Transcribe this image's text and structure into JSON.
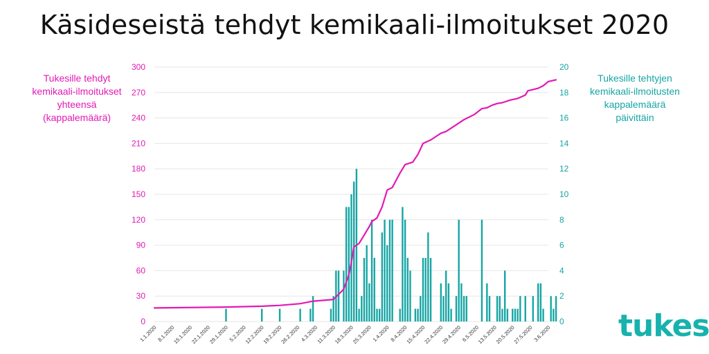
{
  "title": "Käsideseistä tehdyt kemikaali-ilmoitukset 2020",
  "left_axis_label": "Tukesille tehdyt kemikaali-ilmoitukset yhteensä (kappalemäärä)",
  "right_axis_label": "Tukesille tehtyjen kemikaali-ilmoitusten kappalemäärä päivittäin",
  "logo_text": "tukes",
  "colors": {
    "line": "#e219b4",
    "bars": "#16a5a4",
    "grid": "#e6e6e6",
    "title": "#111111"
  },
  "chart_data": {
    "type": "bar+line",
    "title": "Käsideseistä tehdyt kemikaali-ilmoitukset 2020",
    "x_start": "2020-01-01",
    "x_end": "2020-06-03",
    "x_tick_labels": [
      "1.1.2020",
      "8.1.2020",
      "15.1.2020",
      "22.1.2020",
      "29.1.2020",
      "5.2.2020",
      "12.2.2020",
      "19.2.2020",
      "26.2.2020",
      "4.3.2020",
      "11.3.2020",
      "18.3.2020",
      "25.3.2020",
      "1.4.2020",
      "8.4.2020",
      "15.4.2020",
      "22.4.2020",
      "29.4.2020",
      "6.5.2020",
      "13.5.2020",
      "20.5.2020",
      "27.5.2020",
      "3.6.2020"
    ],
    "y_left": {
      "label": "Tukesille tehdyt kemikaali-ilmoitukset yhteensä (kappalemäärä)",
      "ticks": [
        0,
        30,
        60,
        90,
        120,
        150,
        180,
        210,
        240,
        270,
        300
      ],
      "range": [
        0,
        300
      ]
    },
    "y_right": {
      "label": "Tukesille tehtyjen kemikaali-ilmoitusten kappalemäärä päivittäin",
      "ticks": [
        0,
        2,
        4,
        6,
        8,
        10,
        12,
        14,
        16,
        18,
        20
      ],
      "range": [
        0,
        20
      ]
    },
    "grid": true,
    "series": [
      {
        "kind": "bar",
        "axis": "right",
        "points": [
          [
            "2020-01-29",
            1
          ],
          [
            "2020-02-12",
            1
          ],
          [
            "2020-02-19",
            1
          ],
          [
            "2020-02-27",
            1
          ],
          [
            "2020-03-02",
            1
          ],
          [
            "2020-03-03",
            2
          ],
          [
            "2020-03-10",
            1
          ],
          [
            "2020-03-11",
            2
          ],
          [
            "2020-03-12",
            4
          ],
          [
            "2020-03-13",
            4
          ],
          [
            "2020-03-15",
            4
          ],
          [
            "2020-03-16",
            9
          ],
          [
            "2020-03-17",
            9
          ],
          [
            "2020-03-18",
            10
          ],
          [
            "2020-03-19",
            11
          ],
          [
            "2020-03-20",
            12
          ],
          [
            "2020-03-21",
            1
          ],
          [
            "2020-03-22",
            2
          ],
          [
            "2020-03-23",
            5
          ],
          [
            "2020-03-24",
            6
          ],
          [
            "2020-03-25",
            3
          ],
          [
            "2020-03-26",
            8
          ],
          [
            "2020-03-27",
            5
          ],
          [
            "2020-03-28",
            1
          ],
          [
            "2020-03-29",
            1
          ],
          [
            "2020-03-30",
            7
          ],
          [
            "2020-03-31",
            8
          ],
          [
            "2020-04-01",
            6
          ],
          [
            "2020-04-02",
            8
          ],
          [
            "2020-04-03",
            8
          ],
          [
            "2020-04-06",
            1
          ],
          [
            "2020-04-07",
            9
          ],
          [
            "2020-04-08",
            8
          ],
          [
            "2020-04-09",
            5
          ],
          [
            "2020-04-10",
            4
          ],
          [
            "2020-04-12",
            1
          ],
          [
            "2020-04-13",
            1
          ],
          [
            "2020-04-14",
            2
          ],
          [
            "2020-04-15",
            5
          ],
          [
            "2020-04-16",
            5
          ],
          [
            "2020-04-17",
            7
          ],
          [
            "2020-04-18",
            5
          ],
          [
            "2020-04-22",
            3
          ],
          [
            "2020-04-23",
            2
          ],
          [
            "2020-04-24",
            4
          ],
          [
            "2020-04-25",
            3
          ],
          [
            "2020-04-26",
            1
          ],
          [
            "2020-04-28",
            2
          ],
          [
            "2020-04-29",
            8
          ],
          [
            "2020-04-30",
            3
          ],
          [
            "2020-05-01",
            2
          ],
          [
            "2020-05-02",
            2
          ],
          [
            "2020-05-08",
            8
          ],
          [
            "2020-05-10",
            3
          ],
          [
            "2020-05-11",
            2
          ],
          [
            "2020-05-14",
            2
          ],
          [
            "2020-05-15",
            2
          ],
          [
            "2020-05-16",
            1
          ],
          [
            "2020-05-17",
            4
          ],
          [
            "2020-05-18",
            1
          ],
          [
            "2020-05-20",
            1
          ],
          [
            "2020-05-21",
            1
          ],
          [
            "2020-05-22",
            1
          ],
          [
            "2020-05-23",
            2
          ],
          [
            "2020-05-25",
            2
          ],
          [
            "2020-05-28",
            2
          ],
          [
            "2020-05-30",
            3
          ],
          [
            "2020-05-31",
            3
          ],
          [
            "2020-06-01",
            1
          ],
          [
            "2020-06-04",
            2
          ],
          [
            "2020-06-05",
            1
          ],
          [
            "2020-06-06",
            2
          ]
        ]
      },
      {
        "kind": "line",
        "axis": "left",
        "points": [
          [
            "2020-01-01",
            16
          ],
          [
            "2020-01-29",
            17
          ],
          [
            "2020-02-12",
            18
          ],
          [
            "2020-02-19",
            19
          ],
          [
            "2020-02-27",
            21
          ],
          [
            "2020-03-03",
            24
          ],
          [
            "2020-03-11",
            26
          ],
          [
            "2020-03-13",
            32
          ],
          [
            "2020-03-15",
            38
          ],
          [
            "2020-03-17",
            55
          ],
          [
            "2020-03-18",
            70
          ],
          [
            "2020-03-19",
            88
          ],
          [
            "2020-03-21",
            92
          ],
          [
            "2020-03-23",
            102
          ],
          [
            "2020-03-25",
            112
          ],
          [
            "2020-03-26",
            118
          ],
          [
            "2020-03-28",
            122
          ],
          [
            "2020-03-30",
            135
          ],
          [
            "2020-04-01",
            155
          ],
          [
            "2020-04-03",
            158
          ],
          [
            "2020-04-06",
            175
          ],
          [
            "2020-04-08",
            185
          ],
          [
            "2020-04-11",
            188
          ],
          [
            "2020-04-13",
            197
          ],
          [
            "2020-04-15",
            210
          ],
          [
            "2020-04-18",
            214
          ],
          [
            "2020-04-22",
            222
          ],
          [
            "2020-04-24",
            224
          ],
          [
            "2020-04-28",
            232
          ],
          [
            "2020-05-01",
            238
          ],
          [
            "2020-05-05",
            244
          ],
          [
            "2020-05-08",
            251
          ],
          [
            "2020-05-10",
            252
          ],
          [
            "2020-05-12",
            255
          ],
          [
            "2020-05-14",
            257
          ],
          [
            "2020-05-16",
            258
          ],
          [
            "2020-05-19",
            261
          ],
          [
            "2020-05-22",
            263
          ],
          [
            "2020-05-25",
            267
          ],
          [
            "2020-05-26",
            272
          ],
          [
            "2020-05-30",
            275
          ],
          [
            "2020-06-01",
            278
          ],
          [
            "2020-06-03",
            283
          ],
          [
            "2020-06-06",
            285
          ]
        ]
      }
    ]
  }
}
